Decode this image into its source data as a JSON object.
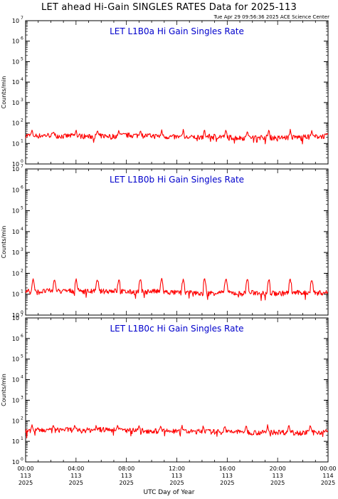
{
  "header": {
    "title": "LET ahead Hi-Gain SINGLES RATES Data for 2025-113",
    "stamp": "Tue Apr 29 09:56:36 2025 ACE Science Center"
  },
  "x_axis": {
    "label": "UTC Day of Year",
    "ticks": [
      {
        "time": "00:00",
        "doy": "113",
        "year": "2025"
      },
      {
        "time": "04:00",
        "doy": "113",
        "year": "2025"
      },
      {
        "time": "08:00",
        "doy": "113",
        "year": "2025"
      },
      {
        "time": "12:00",
        "doy": "113",
        "year": "2025"
      },
      {
        "time": "16:00",
        "doy": "113",
        "year": "2025"
      },
      {
        "time": "20:00",
        "doy": "113",
        "year": "2025"
      },
      {
        "time": "00:00",
        "doy": "114",
        "year": "2025"
      }
    ]
  },
  "colors": {
    "series": "#ff0000",
    "panel_title": "#0000cc",
    "axes": "#000000"
  },
  "chart_data": [
    {
      "type": "line",
      "title": "LET L1B0a Hi Gain Singles Rate",
      "ylabel": "Counts/min",
      "yscale": "log",
      "ylim": [
        1,
        10000000
      ],
      "y_ticks": [
        "10^0",
        "10^1",
        "10^2",
        "10^3",
        "10^4",
        "10^5",
        "10^6",
        "10^7"
      ],
      "xlim_hours": [
        0,
        24
      ],
      "series": [
        {
          "x_hours": [
            0,
            1,
            2,
            3,
            4,
            5,
            6,
            7,
            8,
            9,
            10,
            11,
            12,
            13,
            14,
            15,
            16,
            17,
            18,
            19,
            20,
            21,
            22,
            23,
            24
          ],
          "values": [
            25,
            24,
            26,
            23,
            25,
            22,
            24,
            23,
            26,
            25,
            24,
            22,
            21,
            20,
            22,
            23,
            21,
            19,
            20,
            21,
            19,
            20,
            21,
            22,
            24
          ],
          "spike_hours": [
            0.5,
            2.2,
            4.0,
            5.7,
            7.4,
            9.1,
            10.8,
            12.5,
            14.2,
            15.9,
            17.6,
            19.3,
            21.0,
            22.7
          ],
          "spike_value": 45
        }
      ]
    },
    {
      "type": "line",
      "title": "LET L1B0b Hi Gain Singles Rate",
      "ylabel": "Counts/min",
      "yscale": "log",
      "ylim": [
        1,
        10000000
      ],
      "y_ticks": [
        "10^0",
        "10^1",
        "10^2",
        "10^3",
        "10^4",
        "10^5",
        "10^6",
        "10^7"
      ],
      "xlim_hours": [
        0,
        24
      ],
      "series": [
        {
          "x_hours": [
            0,
            1,
            2,
            3,
            4,
            5,
            6,
            7,
            8,
            9,
            10,
            11,
            12,
            13,
            14,
            15,
            16,
            17,
            18,
            19,
            20,
            21,
            22,
            23,
            24
          ],
          "values": [
            14,
            13,
            15,
            14,
            15,
            14,
            14,
            15,
            13,
            13,
            14,
            13,
            12,
            12,
            11,
            12,
            12,
            11,
            12,
            12,
            11,
            12,
            12,
            12,
            12
          ],
          "spike_hours": [
            0.6,
            2.3,
            4.0,
            5.7,
            7.4,
            9.1,
            10.8,
            12.5,
            14.2,
            15.9,
            17.6,
            19.3,
            21.0,
            22.7
          ],
          "spike_value": 55
        }
      ]
    },
    {
      "type": "line",
      "title": "LET L1B0c Hi Gain Singles Rate",
      "ylabel": "Counts/min",
      "yscale": "log",
      "ylim": [
        1,
        10000000
      ],
      "y_ticks": [
        "10^0",
        "10^1",
        "10^2",
        "10^3",
        "10^4",
        "10^5",
        "10^6",
        "10^7"
      ],
      "xlim_hours": [
        0,
        24
      ],
      "series": [
        {
          "x_hours": [
            0,
            1,
            2,
            3,
            4,
            5,
            6,
            7,
            8,
            9,
            10,
            11,
            12,
            13,
            14,
            15,
            16,
            17,
            18,
            19,
            20,
            21,
            22,
            23,
            24
          ],
          "values": [
            35,
            36,
            34,
            38,
            37,
            36,
            38,
            37,
            35,
            34,
            33,
            32,
            31,
            30,
            31,
            30,
            29,
            30,
            28,
            27,
            29,
            28,
            27,
            28,
            30
          ],
          "spike_hours": [
            0.5,
            2.2,
            3.9,
            5.6,
            7.3,
            9.0,
            10.7,
            12.4,
            14.1,
            15.8,
            17.5,
            19.2,
            20.9,
            22.6
          ],
          "spike_value": 60
        }
      ]
    }
  ]
}
